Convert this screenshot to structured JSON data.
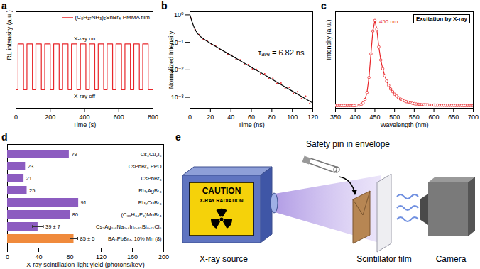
{
  "chart_data": [
    {
      "panel": "a",
      "type": "line",
      "x_label": "Time (s)",
      "y_label": "RL intensity (a.u.)",
      "xlim": [
        0,
        800
      ],
      "xticks": [
        0,
        200,
        400,
        600,
        800
      ],
      "ylim": [
        0,
        1.35
      ],
      "tick_labels": "x",
      "legend": "top-right",
      "annotations": [
        "X-ray on",
        "X-ray off"
      ],
      "series": [
        {
          "name": "(C₈H₁₇NH₃)₂SnBr₄-PMMA film",
          "color": "#e8262a",
          "x": [
            0,
            12,
            12,
            44,
            44,
            64,
            64,
            96,
            96,
            116,
            116,
            148,
            148,
            168,
            168,
            200,
            200,
            220,
            220,
            252,
            252,
            272,
            272,
            304,
            304,
            324,
            324,
            356,
            356,
            376,
            376,
            408,
            408,
            428,
            428,
            460,
            460,
            480,
            480,
            512,
            512,
            532,
            532,
            564,
            564,
            584,
            584,
            616,
            616,
            636,
            636,
            668,
            668,
            688,
            688,
            720,
            720,
            740,
            740,
            772,
            772,
            800
          ],
          "values": [
            0.26,
            0.26,
            0.9,
            0.9,
            0.26,
            0.26,
            0.9,
            0.9,
            0.26,
            0.26,
            0.9,
            0.9,
            0.26,
            0.26,
            0.9,
            0.9,
            0.26,
            0.26,
            0.9,
            0.9,
            0.26,
            0.26,
            0.9,
            0.9,
            0.26,
            0.26,
            0.9,
            0.9,
            0.26,
            0.26,
            0.9,
            0.9,
            0.26,
            0.26,
            0.9,
            0.9,
            0.26,
            0.26,
            0.9,
            0.9,
            0.26,
            0.26,
            0.9,
            0.9,
            0.26,
            0.26,
            0.9,
            0.9,
            0.26,
            0.26,
            0.9,
            0.9,
            0.26,
            0.26,
            0.9,
            0.9,
            0.26,
            0.26,
            0.9,
            0.9,
            0.26,
            0.26
          ]
        }
      ]
    },
    {
      "panel": "b",
      "type": "scatter",
      "x_label": "Time (ns)",
      "y_label": "Normalized Intensity",
      "xlim": [
        0,
        120
      ],
      "xticks": [
        0,
        20,
        40,
        60,
        80,
        100,
        120
      ],
      "log": "y",
      "ylim": [
        0.0004,
        1.3
      ],
      "yticks": [
        {
          "value": 0.001,
          "label": "10⁻³"
        },
        {
          "value": 0.01,
          "label": "10⁻²"
        },
        {
          "value": 0.1,
          "label": "10⁻¹"
        },
        {
          "value": 1,
          "label": "10⁰"
        }
      ],
      "annotations": [
        "τₐᵥₑ = 6.82 ns"
      ],
      "series": [
        {
          "type": "scatter",
          "marker": "dot",
          "color": "#e8262a",
          "x": [
            1,
            5,
            9,
            13,
            17,
            21,
            25,
            29,
            33,
            37,
            41,
            45,
            49,
            53,
            57,
            61,
            65,
            69,
            73,
            77,
            81,
            85,
            89,
            93,
            97,
            101,
            105,
            109,
            113,
            117
          ],
          "values": [
            0.76,
            0.29,
            0.19,
            0.13,
            0.11,
            0.085,
            0.075,
            0.056,
            0.051,
            0.037,
            0.034,
            0.024,
            0.023,
            0.016,
            0.0155,
            0.0108,
            0.0104,
            0.0072,
            0.0071,
            0.0048,
            0.0049,
            0.0032,
            0.0033,
            0.0021,
            0.0023,
            0.0014,
            0.0016,
            0.0009,
            0.0011,
            0.0006
          ]
        },
        {
          "type": "line",
          "color": "#000000",
          "x": [
            0,
            2,
            4,
            6,
            8,
            10,
            15,
            20,
            30,
            40,
            50,
            60,
            70,
            80,
            90,
            100,
            110,
            120
          ],
          "values": [
            1.0,
            0.563,
            0.356,
            0.253,
            0.198,
            0.165,
            0.12,
            0.092,
            0.0558,
            0.0338,
            0.0205,
            0.0124,
            0.00755,
            0.00458,
            0.00278,
            0.00168,
            0.00102,
            0.00062
          ]
        }
      ]
    },
    {
      "panel": "c",
      "type": "line",
      "title": "Excitation by X-ray",
      "x_label": "Wavelength (nm)",
      "y_label": "Intensity (a.u.)",
      "xlim": [
        350,
        700
      ],
      "xticks": [
        350,
        400,
        450,
        500,
        550,
        600,
        650,
        700
      ],
      "ylim": [
        0,
        1.1
      ],
      "tick_labels": "x",
      "legend": "top-right",
      "annotations": [
        "450 nm"
      ],
      "series": [
        {
          "color": "#e8262a",
          "marker": "circle",
          "x": [
            350,
            355,
            360,
            365,
            370,
            375,
            380,
            385,
            390,
            395,
            400,
            405,
            410,
            415,
            420,
            425,
            430,
            435,
            440,
            445,
            450,
            455,
            460,
            465,
            470,
            475,
            480,
            485,
            490,
            495,
            500,
            505,
            510,
            515,
            520,
            525,
            530,
            535,
            540,
            545,
            550,
            555,
            560,
            565,
            570,
            575,
            580,
            585,
            590,
            595,
            600,
            605,
            610,
            615,
            620,
            625,
            630,
            635,
            640,
            645,
            650,
            655,
            660,
            665,
            670,
            675,
            680,
            685,
            690,
            695,
            700
          ],
          "values": [
            0.03,
            0.03,
            0.03,
            0.03,
            0.03,
            0.03,
            0.03,
            0.03,
            0.03,
            0.03,
            0.03,
            0.035,
            0.035,
            0.04,
            0.06,
            0.1,
            0.18,
            0.35,
            0.62,
            0.88,
            1.0,
            0.9,
            0.7,
            0.55,
            0.45,
            0.37,
            0.31,
            0.26,
            0.22,
            0.19,
            0.16,
            0.14,
            0.12,
            0.105,
            0.095,
            0.085,
            0.075,
            0.068,
            0.062,
            0.057,
            0.052,
            0.048,
            0.045,
            0.043,
            0.041,
            0.04,
            0.039,
            0.038,
            0.037,
            0.036,
            0.036,
            0.035,
            0.035,
            0.034,
            0.034,
            0.033,
            0.033,
            0.033,
            0.032,
            0.032,
            0.032,
            0.031,
            0.031,
            0.031,
            0.031,
            0.03,
            0.03,
            0.03,
            0.03,
            0.03,
            0.03
          ]
        }
      ]
    },
    {
      "panel": "d",
      "type": "bar",
      "orientation": "horizontal",
      "x_label": "X-ray scintillation light yield (photons/keV)",
      "xlim": [
        0,
        200
      ],
      "xticks": [
        0,
        40,
        80,
        120,
        160,
        200
      ],
      "tick_labels": "x",
      "data_labels": true,
      "categories": [
        "Cs₃Cu₂I₅",
        "CsPbBr₃ PPO",
        "CsPbBr₃",
        "Rb₂AgBr₃",
        "Rb₂CuBr₃",
        "(C₃₈H₃₄P₂)MnBr₄",
        "Cs₂Ag₀.₆Na₀.₄In₀.₈₅Bi₀.₁₅Cl₆",
        "BA₂PbBr₄: 10% Mn (8)"
      ],
      "values": [
        79,
        23,
        21,
        25,
        91,
        80,
        39,
        85
      ],
      "errors": [
        null,
        null,
        null,
        null,
        null,
        null,
        7,
        5
      ],
      "value_labels": [
        "79",
        "23",
        "21",
        "25",
        "91",
        "80",
        "39 ± 7",
        "85 ± 5"
      ],
      "colors": [
        "#8c5cc0",
        "#8c5cc0",
        "#8c5cc0",
        "#8c5cc0",
        "#8c5cc0",
        "#8c5cc0",
        "#8c5cc0",
        "#f08a3c"
      ]
    }
  ],
  "diagram": {
    "panel": "e",
    "title": "Safety pin in envelope",
    "sign": [
      "CAUTION",
      "X-RAY RADIATION"
    ],
    "labels": [
      "X-ray source",
      "Scintillator film",
      "Camera"
    ]
  }
}
